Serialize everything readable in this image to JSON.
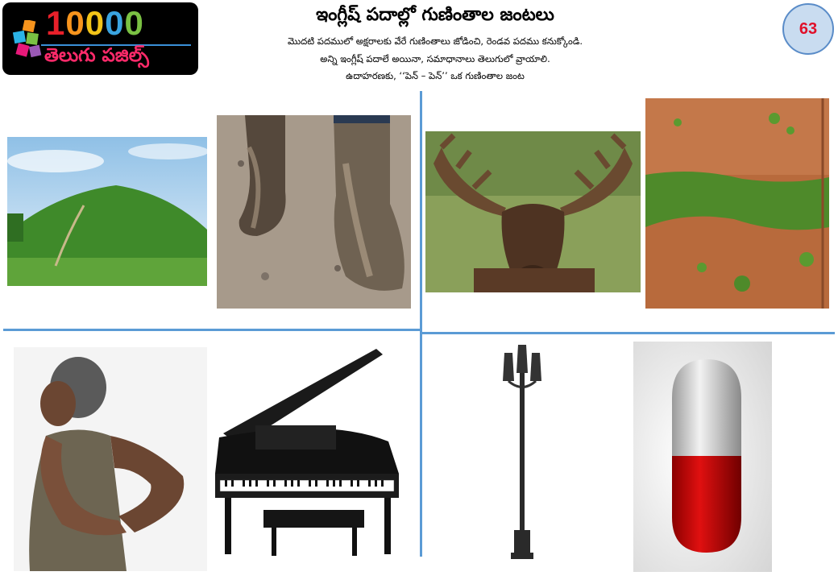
{
  "logo": {
    "digits": "10000",
    "telugu": "తెలుగు పజిల్స్"
  },
  "header": {
    "title": "ఇంగ్లీష్ పదాల్లో గుణింతాల జంటలు",
    "instructions": [
      "మొదటి పదములో అక్షరాలకు వేరే గుణింతాలు జోడించి, రెండవ పదము కనుక్కోండి.",
      "అన్ని ఇంగ్లీష్ పదాలే అయినా, సమాధానాలు తెలుగులో వ్రాయాలి.",
      "ఉదాహరణకు, ‘‘పెన్ – పెన్’’ ఒక గుణింతాల జంట"
    ],
    "puzzle_number": "63"
  },
  "images": [
    {
      "name": "hill-image"
    },
    {
      "name": "muddy-boots-image"
    },
    {
      "name": "moose-image"
    },
    {
      "name": "moss-wall-image"
    },
    {
      "name": "back-pain-image"
    },
    {
      "name": "piano-image"
    },
    {
      "name": "lamp-post-image"
    },
    {
      "name": "pill-capsule-image"
    }
  ],
  "colors": {
    "divider": "#5b9bd5",
    "badge_fill": "#c9dcf0",
    "badge_text": "#e0102a"
  }
}
